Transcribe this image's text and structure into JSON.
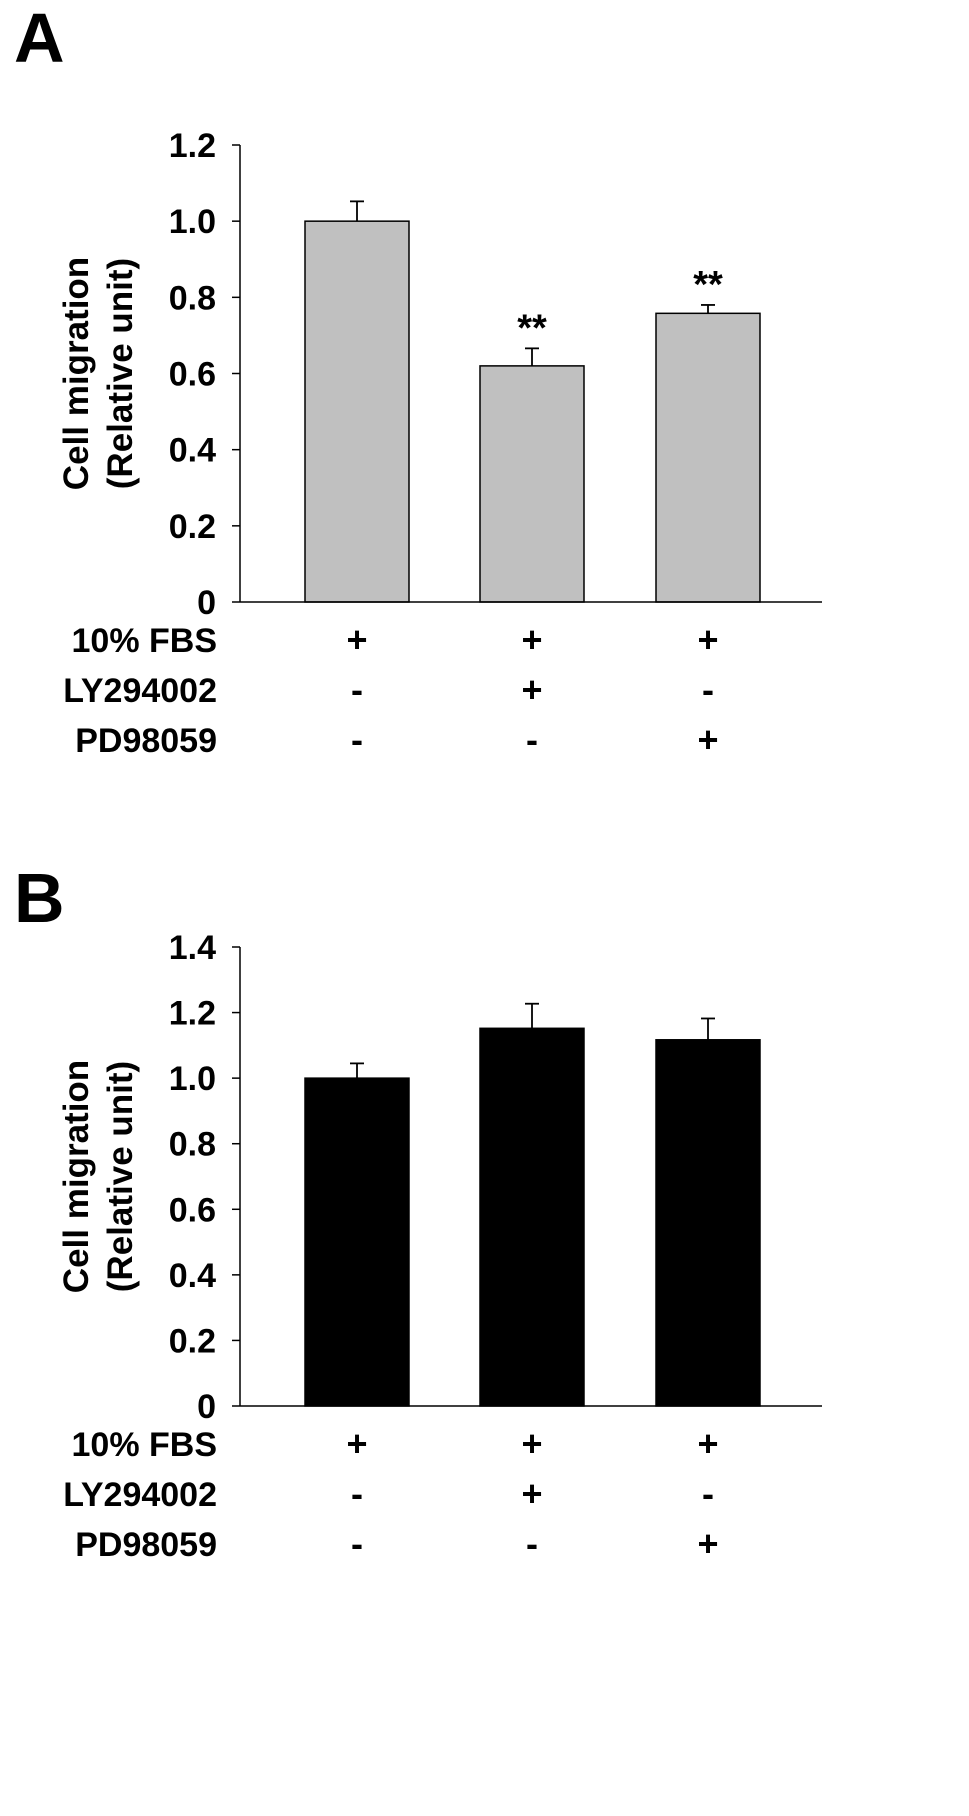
{
  "chart_data": [
    {
      "panel": "A",
      "type": "bar",
      "ylabel_line1": "Cell migration",
      "ylabel_line2": "(Relative unit)",
      "ylim": [
        0,
        1.2
      ],
      "yticks": [
        "0",
        "0.2",
        "0.4",
        "0.6",
        "0.8",
        "1.0",
        "1.2"
      ],
      "bar_color": "#c0c0c0",
      "values": [
        1.0,
        0.62,
        0.758
      ],
      "errors": [
        0.052,
        0.046,
        0.022
      ],
      "significance": [
        "",
        "**",
        "**"
      ],
      "conditions": [
        {
          "label": "10% FBS",
          "marks": [
            "+",
            "+",
            "+"
          ]
        },
        {
          "label": "LY294002",
          "marks": [
            "-",
            "+",
            "-"
          ]
        },
        {
          "label": "PD98059",
          "marks": [
            "-",
            "-",
            "+"
          ]
        }
      ]
    },
    {
      "panel": "B",
      "type": "bar",
      "ylabel_line1": "Cell migration",
      "ylabel_line2": "(Relative unit)",
      "ylim": [
        0,
        1.4
      ],
      "yticks": [
        "0",
        "0.2",
        "0.4",
        "0.6",
        "0.8",
        "1.0",
        "1.2",
        "1.4"
      ],
      "bar_color": "#000000",
      "values": [
        1.0,
        1.152,
        1.117
      ],
      "errors": [
        0.045,
        0.075,
        0.065
      ],
      "significance": [
        "",
        "",
        ""
      ],
      "conditions": [
        {
          "label": "10% FBS",
          "marks": [
            "+",
            "+",
            "+"
          ]
        },
        {
          "label": "LY294002",
          "marks": [
            "-",
            "+",
            "-"
          ]
        },
        {
          "label": "PD98059",
          "marks": [
            "-",
            "-",
            "+"
          ]
        }
      ]
    }
  ]
}
